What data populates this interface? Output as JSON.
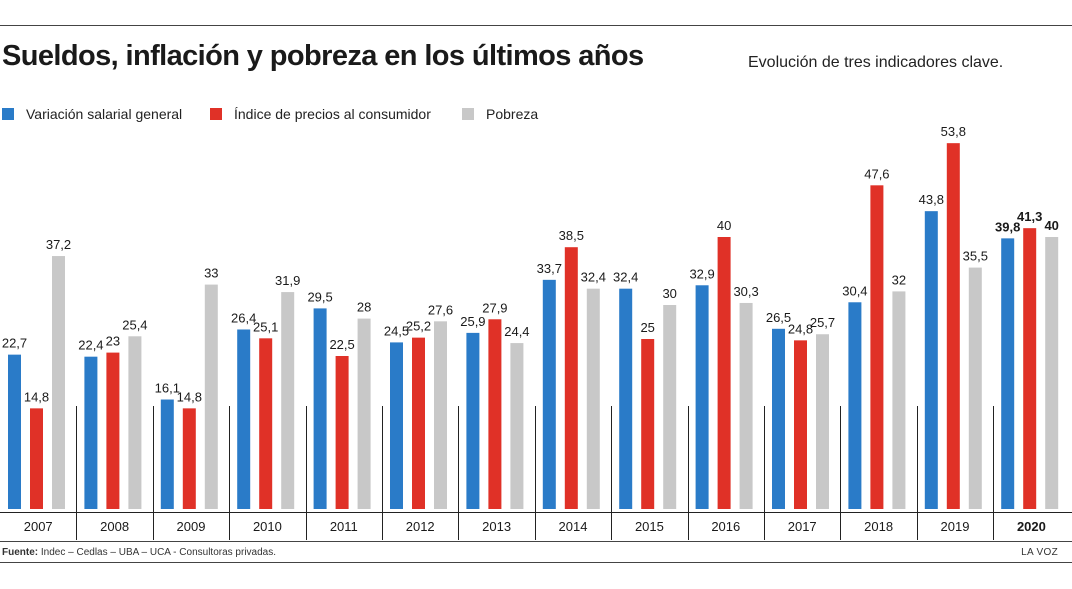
{
  "title": "Sueldos, inflación y pobreza en los últimos años",
  "subtitle": "Evolución de tres indicadores clave.",
  "source_label": "Fuente:",
  "source_text": "Indec – Cedlas – UBA – UCA - Consultoras privadas.",
  "brand": "LA VOZ",
  "chart_data": {
    "type": "bar",
    "categories": [
      "2007",
      "2008",
      "2009",
      "2010",
      "2011",
      "2012",
      "2013",
      "2014",
      "2015",
      "2016",
      "2017",
      "2018",
      "2019",
      "2020"
    ],
    "series": [
      {
        "name": "Variación salarial general",
        "color": "#2a7bc8",
        "values": [
          22.7,
          22.4,
          16.1,
          26.4,
          29.5,
          24.5,
          25.9,
          33.7,
          32.4,
          32.9,
          26.5,
          30.4,
          43.8,
          39.8
        ],
        "labels": [
          "22,7",
          "22,4",
          "16,1",
          "26,4",
          "29,5",
          "24,5",
          "25,9",
          "33,7",
          "32,4",
          "32,9",
          "26,5",
          "30,4",
          "43,8",
          "39,8"
        ]
      },
      {
        "name": "Índice de precios al consumidor",
        "color": "#e03127",
        "values": [
          14.8,
          23,
          14.8,
          25.1,
          22.5,
          25.2,
          27.9,
          38.5,
          25,
          40,
          24.8,
          47.6,
          53.8,
          41.3
        ],
        "labels": [
          "14,8",
          "23",
          "14,8",
          "25,1",
          "22,5",
          "25,2",
          "27,9",
          "38,5",
          "25",
          "40",
          "24,8",
          "47,6",
          "53,8",
          "41,3"
        ]
      },
      {
        "name": "Pobreza",
        "color": "#c8c8c8",
        "values": [
          37.2,
          25.4,
          33,
          31.9,
          28,
          27.6,
          24.4,
          32.4,
          30,
          30.3,
          25.7,
          32,
          35.5,
          40
        ],
        "labels": [
          "37,2",
          "25,4",
          "33",
          "31,9",
          "28",
          "27,6",
          "24,4",
          "32,4",
          "30",
          "30,3",
          "25,7",
          "32",
          "35,5",
          "40"
        ]
      }
    ],
    "highlight_category": "2020",
    "ylim": [
      0,
      55
    ],
    "grid": false,
    "legend_position": "top-left"
  }
}
